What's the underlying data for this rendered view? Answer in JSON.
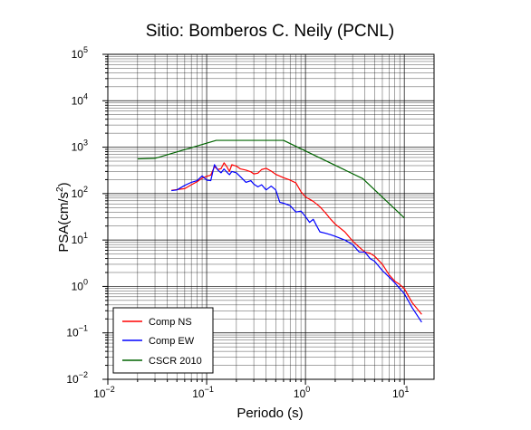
{
  "chart_data": {
    "type": "line",
    "title": "Sitio: Bomberos C. Neily (PCNL)",
    "xlabel": "Periodo (s)",
    "ylabel_prefix": "PSA(cm/s",
    "ylabel_sup": "2",
    "ylabel_suffix": ")",
    "x_scale": "log",
    "y_scale": "log",
    "xlim": [
      0.01,
      20
    ],
    "ylim": [
      0.01,
      100000
    ],
    "grid": true,
    "legend_position": "bottom-left",
    "x_ticks": [
      {
        "value": 0.01,
        "base": "10",
        "exp": "−2"
      },
      {
        "value": 0.1,
        "base": "10",
        "exp": "−1"
      },
      {
        "value": 1,
        "base": "10",
        "exp": "0"
      },
      {
        "value": 10,
        "base": "10",
        "exp": "1"
      }
    ],
    "y_ticks": [
      {
        "value": 0.01,
        "base": "10",
        "exp": "−2"
      },
      {
        "value": 0.1,
        "base": "10",
        "exp": "−1"
      },
      {
        "value": 1,
        "base": "10",
        "exp": "0"
      },
      {
        "value": 10,
        "base": "10",
        "exp": "1"
      },
      {
        "value": 100,
        "base": "10",
        "exp": "2"
      },
      {
        "value": 1000,
        "base": "10",
        "exp": "3"
      },
      {
        "value": 10000,
        "base": "10",
        "exp": "4"
      },
      {
        "value": 100000,
        "base": "10",
        "exp": "5"
      }
    ],
    "series": [
      {
        "name": "Comp NS",
        "color": "#ff0000",
        "points": [
          [
            0.044,
            118
          ],
          [
            0.05,
            122
          ],
          [
            0.06,
            128
          ],
          [
            0.07,
            155
          ],
          [
            0.08,
            180
          ],
          [
            0.09,
            215
          ],
          [
            0.1,
            235
          ],
          [
            0.11,
            250
          ],
          [
            0.12,
            380
          ],
          [
            0.13,
            330
          ],
          [
            0.14,
            345
          ],
          [
            0.15,
            460
          ],
          [
            0.16,
            380
          ],
          [
            0.17,
            300
          ],
          [
            0.18,
            420
          ],
          [
            0.2,
            390
          ],
          [
            0.22,
            340
          ],
          [
            0.25,
            320
          ],
          [
            0.28,
            295
          ],
          [
            0.3,
            265
          ],
          [
            0.33,
            275
          ],
          [
            0.36,
            330
          ],
          [
            0.4,
            350
          ],
          [
            0.45,
            305
          ],
          [
            0.5,
            260
          ],
          [
            0.6,
            220
          ],
          [
            0.7,
            195
          ],
          [
            0.8,
            170
          ],
          [
            0.9,
            110
          ],
          [
            1.0,
            85
          ],
          [
            1.2,
            68
          ],
          [
            1.4,
            52
          ],
          [
            1.6,
            38
          ],
          [
            1.8,
            28
          ],
          [
            2.0,
            22
          ],
          [
            2.5,
            15
          ],
          [
            3.0,
            9.5
          ],
          [
            3.5,
            7
          ],
          [
            4.0,
            5.5
          ],
          [
            4.5,
            5.2
          ],
          [
            5.0,
            4.5
          ],
          [
            6.0,
            3.0
          ],
          [
            7.0,
            1.8
          ],
          [
            8.0,
            1.3
          ],
          [
            9.0,
            1.1
          ],
          [
            10.0,
            0.9
          ],
          [
            12.0,
            0.45
          ],
          [
            15.0,
            0.25
          ]
        ]
      },
      {
        "name": "Comp EW",
        "color": "#0000ff",
        "points": [
          [
            0.044,
            116
          ],
          [
            0.05,
            120
          ],
          [
            0.06,
            150
          ],
          [
            0.07,
            175
          ],
          [
            0.08,
            190
          ],
          [
            0.09,
            240
          ],
          [
            0.1,
            195
          ],
          [
            0.11,
            190
          ],
          [
            0.12,
            420
          ],
          [
            0.13,
            320
          ],
          [
            0.14,
            280
          ],
          [
            0.15,
            340
          ],
          [
            0.16,
            290
          ],
          [
            0.17,
            255
          ],
          [
            0.18,
            300
          ],
          [
            0.2,
            280
          ],
          [
            0.22,
            230
          ],
          [
            0.25,
            175
          ],
          [
            0.28,
            190
          ],
          [
            0.3,
            160
          ],
          [
            0.33,
            140
          ],
          [
            0.36,
            155
          ],
          [
            0.4,
            120
          ],
          [
            0.45,
            145
          ],
          [
            0.5,
            120
          ],
          [
            0.55,
            65
          ],
          [
            0.6,
            62
          ],
          [
            0.7,
            55
          ],
          [
            0.8,
            40
          ],
          [
            0.9,
            42
          ],
          [
            1.0,
            32
          ],
          [
            1.1,
            24
          ],
          [
            1.2,
            28
          ],
          [
            1.3,
            20
          ],
          [
            1.4,
            15
          ],
          [
            1.6,
            14
          ],
          [
            1.8,
            13
          ],
          [
            2.0,
            12
          ],
          [
            2.5,
            10
          ],
          [
            3.0,
            8
          ],
          [
            3.5,
            5.5
          ],
          [
            4.0,
            5.5
          ],
          [
            4.5,
            4.0
          ],
          [
            5.0,
            3.5
          ],
          [
            6.0,
            2.2
          ],
          [
            7.0,
            1.6
          ],
          [
            8.0,
            1.2
          ],
          [
            9.0,
            0.9
          ],
          [
            10.0,
            0.7
          ],
          [
            12.0,
            0.35
          ],
          [
            15.0,
            0.17
          ]
        ]
      },
      {
        "name": "CSCR 2010",
        "color": "#006400",
        "points": [
          [
            0.02,
            560
          ],
          [
            0.03,
            575
          ],
          [
            0.125,
            1400
          ],
          [
            0.6,
            1400
          ],
          [
            3.8,
            210
          ],
          [
            10.0,
            30
          ]
        ]
      }
    ]
  }
}
